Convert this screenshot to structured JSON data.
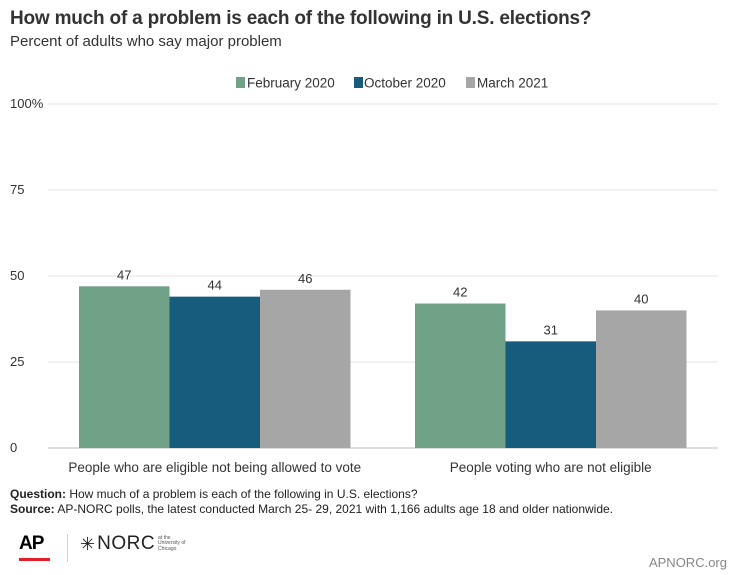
{
  "header": {
    "title": "How much of a problem is each of the following in U.S. elections?",
    "subtitle": "Percent of adults who say major problem"
  },
  "chart_data": {
    "type": "bar",
    "categories": [
      "People who are eligible not being allowed to vote",
      "People voting who are not eligible"
    ],
    "series": [
      {
        "name": "February 2020",
        "values": [
          47,
          42
        ],
        "color": "#6fa287"
      },
      {
        "name": "October 2020",
        "values": [
          44,
          31
        ],
        "color": "#175c7c"
      },
      {
        "name": "March 2021",
        "values": [
          46,
          40
        ],
        "color": "#a6a6a6"
      }
    ],
    "ylim": [
      0,
      100
    ],
    "yticks": [
      0,
      25,
      50,
      75,
      100
    ],
    "ytick_labels": [
      "0",
      "25",
      "50",
      "75",
      "100%"
    ],
    "grid": true,
    "legend": "top-right"
  },
  "footer": {
    "question_label": "Question:",
    "question_text": "How much of a problem is each of the following in U.S. elections?",
    "source_label": "Source:",
    "source_text": "AP-NORC polls, the latest conducted March 25- 29, 2021 with 1,166 adults age 18 and older nationwide.",
    "website": "APNORC.org"
  },
  "logos": {
    "ap": "AP",
    "norc": "NORC",
    "norc_small": "at the University of Chicago"
  }
}
